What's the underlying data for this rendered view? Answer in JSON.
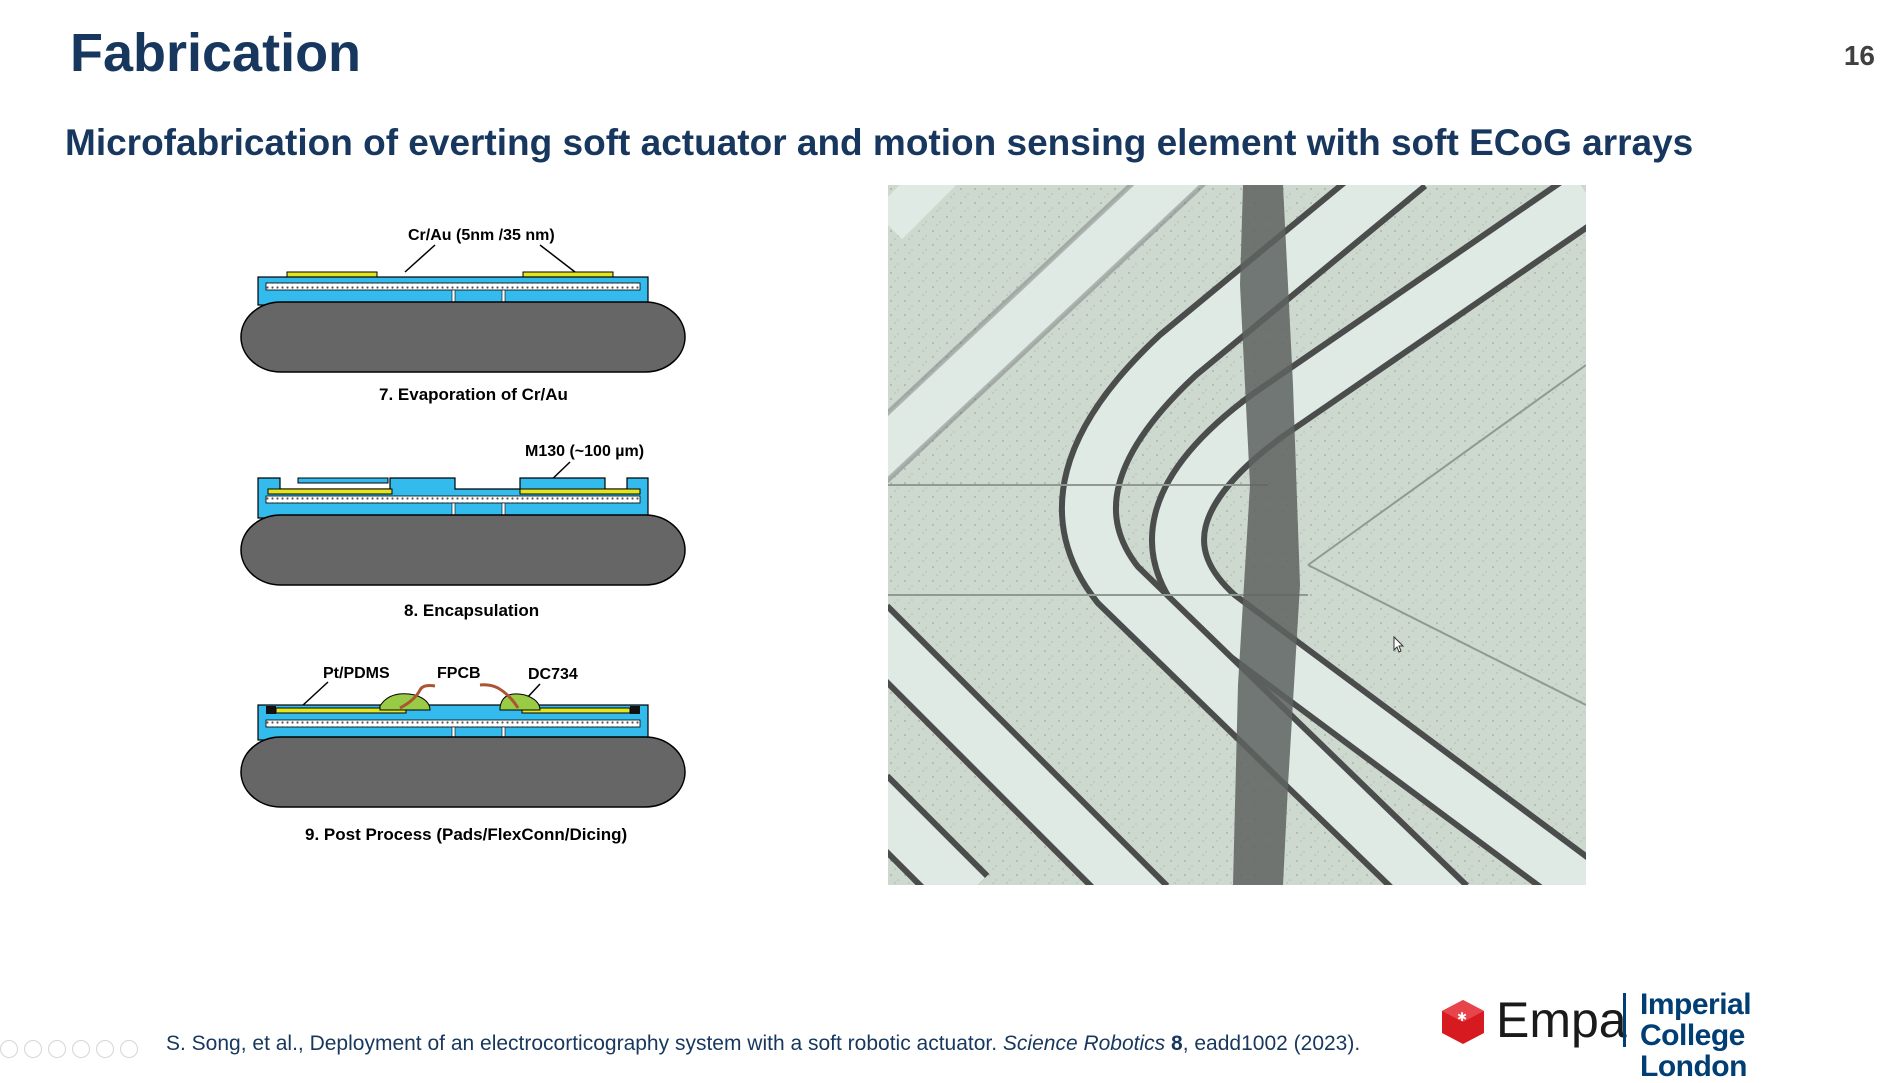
{
  "header": {
    "title": "Fabrication",
    "page_number": "16",
    "subtitle": "Microfabrication of everting soft actuator and motion sensing element with soft ECoG arrays"
  },
  "diagram": {
    "steps": [
      {
        "callout": "Cr/Au (5nm /35 nm)",
        "caption": "7. Evaporation of Cr/Au"
      },
      {
        "callout": "M130 (~100 µm)",
        "caption": "8. Encapsulation"
      },
      {
        "callouts": [
          "Pt/PDMS",
          "FPCB",
          "DC734"
        ],
        "caption": "9. Post Process (Pads/FlexConn/Dicing)"
      }
    ],
    "colors": {
      "substrate": "#666666",
      "layer": "#33bbee",
      "metal": "#e5e51e",
      "glue": "#99cc44",
      "flex": "#aa5533"
    }
  },
  "photo": {
    "description_icon": "microscope-image"
  },
  "citation": {
    "text_before": "S. Song, et al., Deployment of an electrocorticography system with a soft robotic actuator. ",
    "journal": "Science Robotics",
    "volume": "8",
    "text_after": ", eadd1002 (2023)."
  },
  "logos": {
    "empa": "Empa",
    "icl_line1": "Imperial College",
    "icl_line2": "London",
    "empa_color": "#d71920",
    "icl_color": "#003e74"
  }
}
